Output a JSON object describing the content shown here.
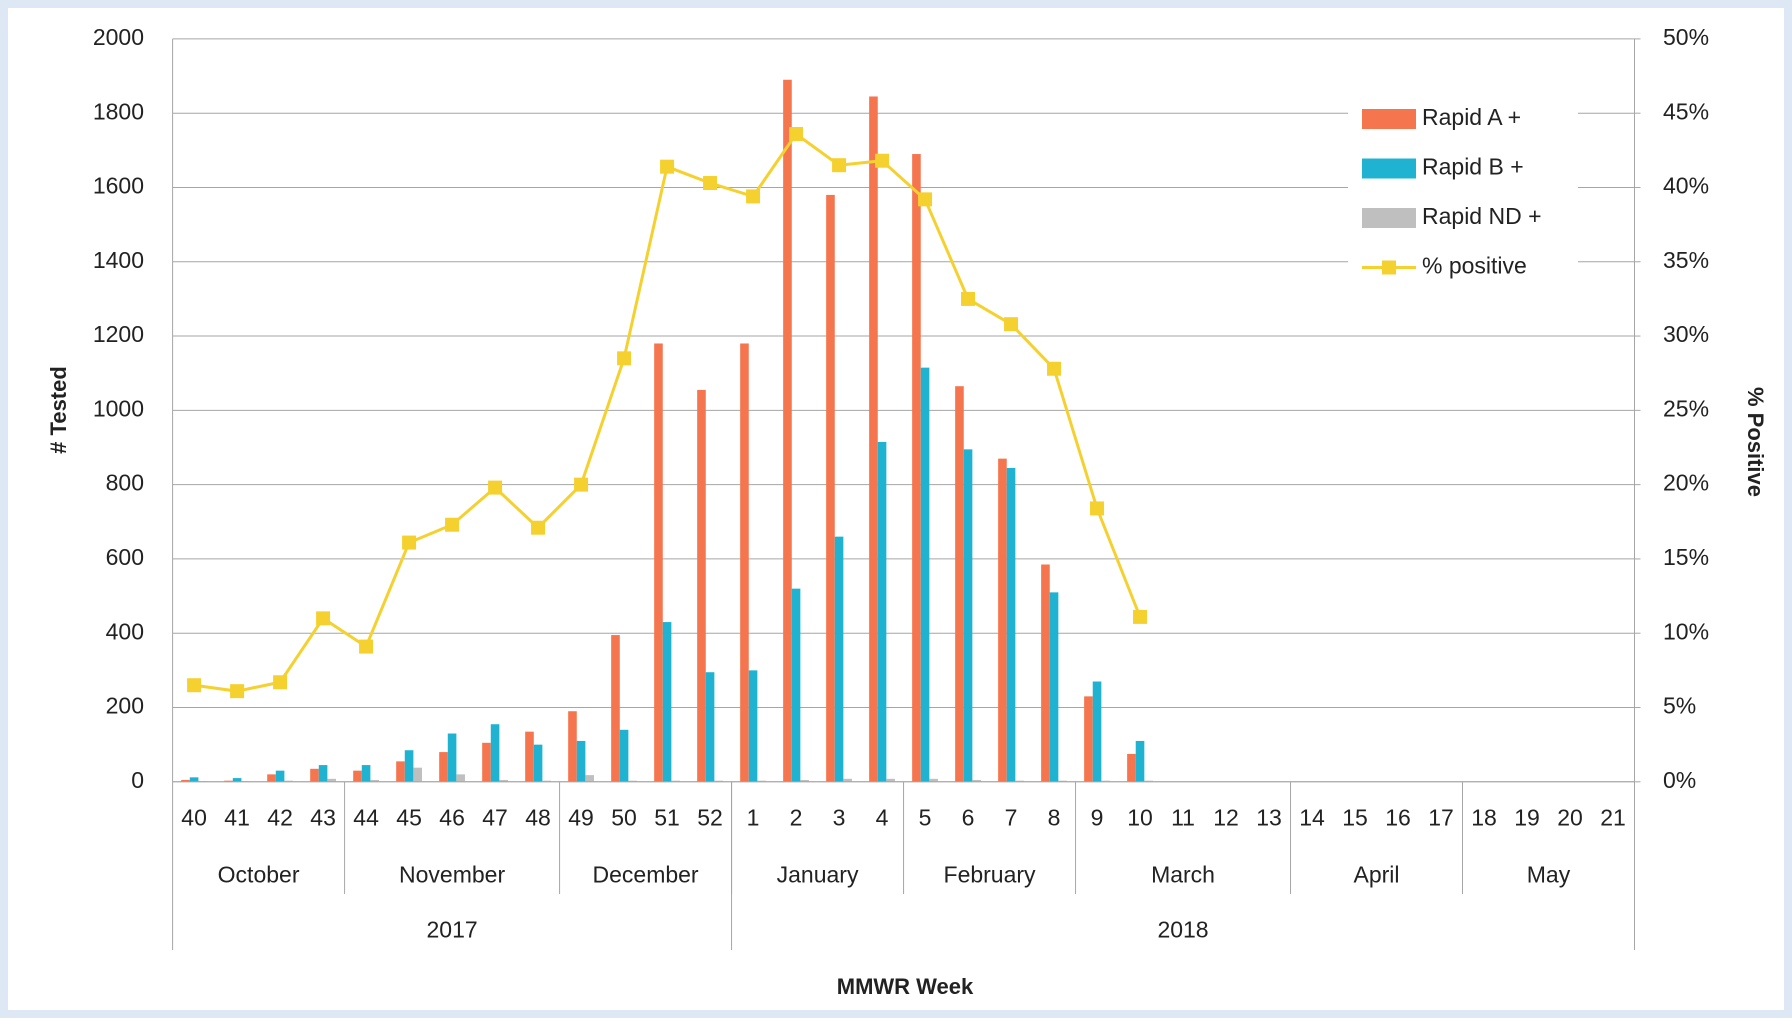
{
  "chart_data": {
    "type": "bar-line",
    "x_label": "MMWR Week",
    "y_label": "# Tested",
    "y2_label": "% Positive",
    "categories": [
      "40",
      "41",
      "42",
      "43",
      "44",
      "45",
      "46",
      "47",
      "48",
      "49",
      "50",
      "51",
      "52",
      "1",
      "2",
      "3",
      "4",
      "5",
      "6",
      "7",
      "8",
      "9",
      "10",
      "11",
      "12",
      "13",
      "14",
      "15",
      "16",
      "17",
      "18",
      "19",
      "20",
      "21"
    ],
    "months": [
      "October",
      null,
      null,
      null,
      "November",
      null,
      null,
      null,
      null,
      "December",
      null,
      null,
      null,
      "January",
      null,
      null,
      null,
      "February",
      null,
      null,
      null,
      "March",
      null,
      null,
      null,
      null,
      "April",
      null,
      null,
      null,
      "May",
      null,
      null,
      null
    ],
    "years": [
      "2017",
      null,
      null,
      null,
      null,
      null,
      null,
      null,
      null,
      null,
      null,
      null,
      null,
      "2018",
      null,
      null,
      null,
      null,
      null,
      null,
      null,
      null,
      null,
      null,
      null,
      null,
      null,
      null,
      null,
      null,
      null,
      null,
      null,
      null
    ],
    "series": [
      {
        "name": "Rapid A +",
        "type": "bar",
        "color": "#f4754e",
        "values": [
          5,
          3,
          20,
          35,
          30,
          55,
          80,
          105,
          135,
          190,
          395,
          1180,
          1055,
          1180,
          1890,
          1580,
          1845,
          1690,
          1065,
          870,
          585,
          230,
          75,
          null,
          null,
          null,
          null,
          null,
          null,
          null,
          null,
          null,
          null,
          null
        ]
      },
      {
        "name": "Rapid B +",
        "type": "bar",
        "color": "#1fb3d1",
        "values": [
          12,
          10,
          30,
          45,
          45,
          85,
          130,
          155,
          100,
          110,
          140,
          430,
          295,
          300,
          520,
          660,
          915,
          1115,
          895,
          845,
          510,
          270,
          110,
          null,
          null,
          null,
          null,
          null,
          null,
          null,
          null,
          null,
          null,
          null
        ]
      },
      {
        "name": "Rapid ND +",
        "type": "bar",
        "color": "#bfbfbf",
        "values": [
          2,
          2,
          3,
          8,
          5,
          38,
          20,
          5,
          3,
          18,
          3,
          3,
          3,
          3,
          5,
          8,
          8,
          8,
          5,
          3,
          3,
          3,
          3,
          null,
          null,
          null,
          null,
          null,
          null,
          null,
          null,
          null,
          null,
          null
        ]
      },
      {
        "name": "% positive",
        "type": "line",
        "axis": "y2",
        "color": "#f5d130",
        "values": [
          6.5,
          6.1,
          6.7,
          11.0,
          9.1,
          16.1,
          17.3,
          19.8,
          17.1,
          20.0,
          28.5,
          41.4,
          40.3,
          39.4,
          43.6,
          41.5,
          41.8,
          39.2,
          32.5,
          30.8,
          27.8,
          18.4,
          11.1,
          null,
          null,
          null,
          null,
          null,
          null,
          null,
          null,
          null,
          null,
          null
        ]
      }
    ],
    "ylim": [
      0,
      2000
    ],
    "yticks": [
      0,
      200,
      400,
      600,
      800,
      1000,
      1200,
      1400,
      1600,
      1800,
      2000
    ],
    "y2lim": [
      0,
      50
    ],
    "y2ticks": [
      {
        "value": 0,
        "label": "0%"
      },
      {
        "value": 5,
        "label": "5%"
      },
      {
        "value": 10,
        "label": "10%"
      },
      {
        "value": 15,
        "label": "15%"
      },
      {
        "value": 20,
        "label": "20%"
      },
      {
        "value": 25,
        "label": "25%"
      },
      {
        "value": 30,
        "label": "30%"
      },
      {
        "value": 35,
        "label": "35%"
      },
      {
        "value": 40,
        "label": "40%"
      },
      {
        "value": 45,
        "label": "45%"
      },
      {
        "value": 50,
        "label": "50%"
      }
    ],
    "grid": true,
    "legend": "upper right"
  }
}
